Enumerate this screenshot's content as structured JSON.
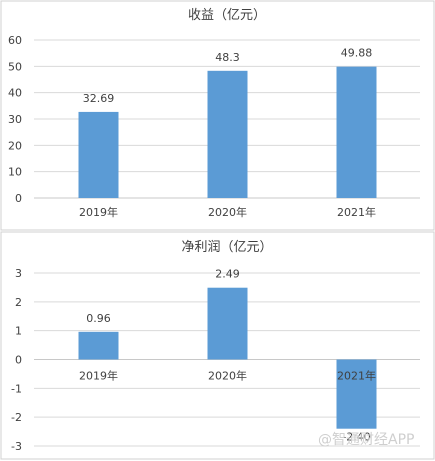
{
  "colors": {
    "bar": "#5b9bd5",
    "grid": "#d9d9d9",
    "text": "#404040"
  },
  "watermark": "@智通财经APP",
  "chart_data": [
    {
      "type": "bar",
      "title": "收益（亿元）",
      "categories": [
        "2019年",
        "2020年",
        "2021年"
      ],
      "values": [
        32.69,
        48.3,
        49.88
      ],
      "data_labels": [
        "32.69",
        "48.3",
        "49.88"
      ],
      "ylim": [
        0,
        60
      ],
      "yticks": [
        0,
        10,
        20,
        30,
        40,
        50,
        60
      ],
      "grid": true,
      "legend": "none"
    },
    {
      "type": "bar",
      "title": "净利润（亿元）",
      "categories": [
        "2019年",
        "2020年",
        "2021年"
      ],
      "values": [
        0.96,
        2.49,
        -2.4
      ],
      "data_labels": [
        "0.96",
        "2.49",
        "-2.40"
      ],
      "ylim": [
        -3,
        3
      ],
      "yticks": [
        -3,
        -2,
        -1,
        0,
        1,
        2,
        3
      ],
      "grid": true,
      "legend": "none"
    }
  ]
}
